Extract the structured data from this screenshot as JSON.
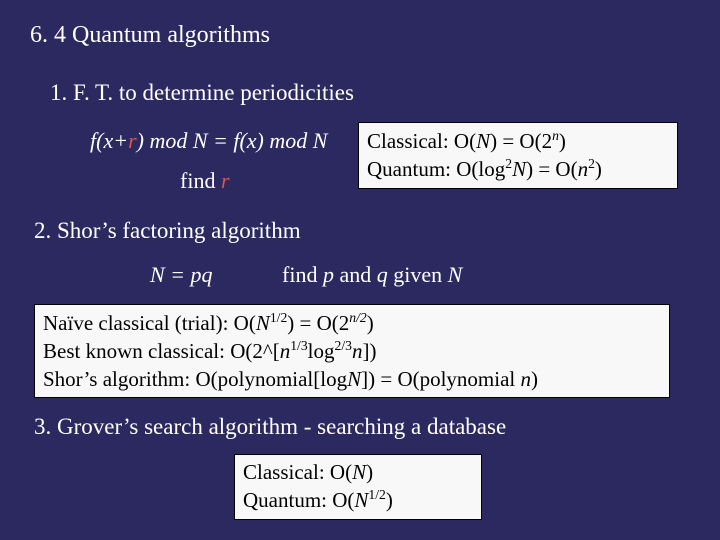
{
  "colors": {
    "background": "#2c2960",
    "text": "#ffffff",
    "box_bg": "#f8f8f8",
    "box_text": "#000000",
    "box_border": "#000000",
    "accent_r": "#d9534f"
  },
  "fonts": {
    "family": "Georgia, Times New Roman, serif",
    "heading_size": 24,
    "body_size": 23,
    "math_size": 22,
    "box_size": 21
  },
  "heading": "6. 4  Quantum algorithms",
  "item1": {
    "label": "1.  F. T. to determine periodicities",
    "eq": {
      "pre": "f(x+",
      "r": "r",
      "post": ") mod N = f(x) mod N"
    },
    "find": {
      "pre": "find ",
      "r": "r"
    }
  },
  "box1": {
    "l1": {
      "pre": "Classical:  O(",
      "N": "N",
      "mid": ") = O(2",
      "exp": "n",
      "post": ")"
    },
    "l2": {
      "pre": "Quantum:  O(log",
      "e1": "2",
      "N": "N",
      "mid": ") = O(",
      "n2": "n",
      "e2": "2",
      "post": ")"
    }
  },
  "item2": {
    "label": "2.  Shor’s factoring algorithm",
    "eq": "N = pq",
    "find": {
      "pre": "find ",
      "p": "p",
      "and": " and ",
      "q": "q",
      "given": " given ",
      "N": "N"
    }
  },
  "box2": {
    "l1": {
      "pre": "Naïve classical (trial):  O(",
      "N": "N",
      "e1": "1/2",
      "mid": ") = O(2",
      "e2": "n/2",
      "post": ")"
    },
    "l2": {
      "pre": "Best known classical:  O(2^[",
      "n": "n",
      "e1": "1/3",
      "log": "log",
      "e2": "2/3",
      "n2": "n",
      "post": "])"
    },
    "l3": {
      "pre": "Shor’s algorithm:  O(polynomial[log",
      "N": "N",
      "mid": "]) = O(polynomial ",
      "n": "n",
      "post": ")"
    }
  },
  "item3": "3.  Grover’s search algorithm - searching a database",
  "box3": {
    "l1": {
      "pre": "Classical:  O(",
      "N": "N",
      "post": ")"
    },
    "l2": {
      "pre": "Quantum:  O(",
      "N": "N",
      "exp": "1/2",
      "post": ")"
    }
  }
}
